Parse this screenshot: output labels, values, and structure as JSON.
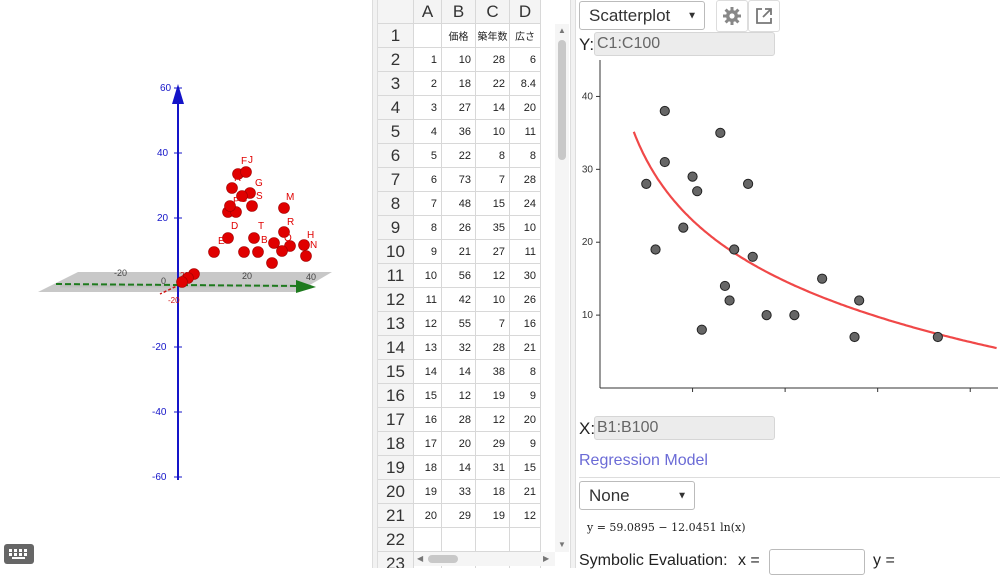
{
  "view3d": {
    "z_ticks": [
      "60",
      "40",
      "20",
      "-20",
      "-40",
      "-60"
    ],
    "x_ticks": [
      "-20",
      "0",
      "20",
      "40"
    ],
    "y_ticks": [
      "20",
      "-20"
    ],
    "point_labels": [
      "F",
      "J",
      "R",
      "G",
      "S",
      "P",
      "C",
      "M",
      "D",
      "T",
      "R",
      "B",
      "E",
      "Q",
      "H",
      "N"
    ],
    "point_color": "#e00000",
    "z_axis_color": "#1414c8",
    "x_axis_color": "#1e7a1e"
  },
  "keyboard_icon": "keyboard-icon",
  "spreadsheet": {
    "columns": [
      "A",
      "B",
      "C",
      "D"
    ],
    "row_numbers": [
      "1",
      "2",
      "3",
      "4",
      "5",
      "6",
      "7",
      "8",
      "9",
      "10",
      "11",
      "12",
      "13",
      "14",
      "15",
      "16",
      "17",
      "18",
      "19",
      "20",
      "21",
      "22",
      "23"
    ],
    "header_row": [
      "",
      "価格",
      "築年数",
      "広さ"
    ],
    "rows": [
      [
        "1",
        "10",
        "28",
        "6"
      ],
      [
        "2",
        "18",
        "22",
        "8.4"
      ],
      [
        "3",
        "27",
        "14",
        "20"
      ],
      [
        "4",
        "36",
        "10",
        "11"
      ],
      [
        "5",
        "22",
        "8",
        "8"
      ],
      [
        "6",
        "73",
        "7",
        "28"
      ],
      [
        "7",
        "48",
        "15",
        "24"
      ],
      [
        "8",
        "26",
        "35",
        "10"
      ],
      [
        "9",
        "21",
        "27",
        "11"
      ],
      [
        "10",
        "56",
        "12",
        "30"
      ],
      [
        "11",
        "42",
        "10",
        "26"
      ],
      [
        "12",
        "55",
        "7",
        "16"
      ],
      [
        "13",
        "32",
        "28",
        "21"
      ],
      [
        "14",
        "14",
        "38",
        "8"
      ],
      [
        "15",
        "12",
        "19",
        "9"
      ],
      [
        "16",
        "28",
        "12",
        "20"
      ],
      [
        "17",
        "20",
        "29",
        "9"
      ],
      [
        "18",
        "14",
        "31",
        "15"
      ],
      [
        "19",
        "33",
        "18",
        "21"
      ],
      [
        "20",
        "29",
        "19",
        "12"
      ]
    ]
  },
  "analysis": {
    "plot_type": "Scatterplot",
    "settings_icon": "gear-icon",
    "export_icon": "export-icon",
    "y_label": "Y:",
    "y_range": "C1:C100",
    "x_label": "X:",
    "x_range": "B1:B100",
    "regression_title": "Regression Model",
    "regression_value": "None",
    "equation": "y = 59.0895 − 12.0451  ln(x)",
    "symbolic_label": "Symbolic Evaluation:",
    "x_eq": "x =",
    "y_eq": "y ="
  },
  "chart_data": {
    "type": "scatter",
    "x": [
      10,
      18,
      27,
      36,
      22,
      73,
      48,
      26,
      21,
      56,
      42,
      55,
      32,
      14,
      12,
      28,
      20,
      14,
      33,
      29
    ],
    "y": [
      28,
      22,
      14,
      10,
      8,
      7,
      15,
      35,
      27,
      12,
      10,
      7,
      28,
      38,
      19,
      12,
      29,
      31,
      18,
      19
    ],
    "xticks": [
      "20",
      "40",
      "60",
      "80"
    ],
    "yticks": [
      "10",
      "20",
      "30",
      "40"
    ],
    "xlim": [
      0,
      86
    ],
    "ylim": [
      0,
      45
    ],
    "fit": {
      "a": 59.0895,
      "b": -12.0451
    },
    "point_color": "#666666",
    "curve_color": "#f04848"
  }
}
